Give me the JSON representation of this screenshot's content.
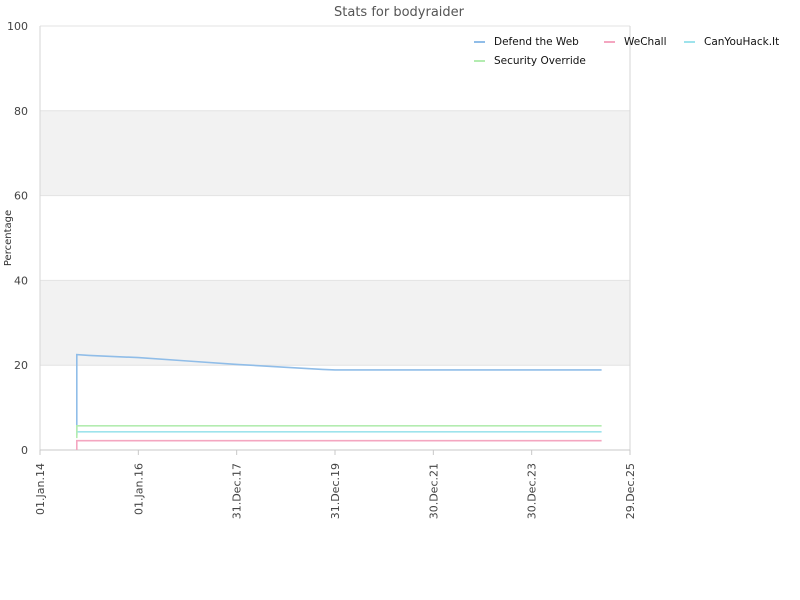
{
  "chart_data": {
    "type": "line",
    "title": "Stats for bodyraider",
    "xlabel": "",
    "ylabel": "Percentage",
    "ylim": [
      0,
      100
    ],
    "yticks": [
      "0",
      "20",
      "40",
      "60",
      "80",
      "100"
    ],
    "xlim": [
      "2014-01-01",
      "2025-12-29"
    ],
    "xticks": [
      {
        "date": "2014-01-01",
        "label": "01.Jan.14"
      },
      {
        "date": "2016-01-01",
        "label": "01.Jan.16"
      },
      {
        "date": "2017-12-31",
        "label": "31.Dec.17"
      },
      {
        "date": "2019-12-31",
        "label": "31.Dec.19"
      },
      {
        "date": "2021-12-30",
        "label": "30.Dec.21"
      },
      {
        "date": "2023-12-30",
        "label": "30.Dec.23"
      },
      {
        "date": "2025-12-29",
        "label": "29.Dec.25"
      }
    ],
    "grid": true,
    "bands": "alternating gray bands between 20-40 and 60-80",
    "legend_position": "top-right",
    "series": [
      {
        "name": "Defend the Web",
        "color": "#90bde8",
        "points": [
          [
            "2014-10-01",
            3.5
          ],
          [
            "2014-10-01",
            22.5
          ],
          [
            "2015-01-01",
            22.3
          ],
          [
            "2016-01-01",
            21.8
          ],
          [
            "2017-01-01",
            21.0
          ],
          [
            "2018-01-01",
            20.2
          ],
          [
            "2019-01-01",
            19.5
          ],
          [
            "2019-10-01",
            19.0
          ],
          [
            "2020-01-01",
            18.9
          ],
          [
            "2025-06-01",
            18.9
          ]
        ]
      },
      {
        "name": "WeChall",
        "color": "#f4a6c0",
        "points": [
          [
            "2014-10-01",
            0
          ],
          [
            "2014-10-01",
            2.2
          ],
          [
            "2025-06-01",
            2.2
          ]
        ]
      },
      {
        "name": "CanYouHack.It",
        "color": "#9ee3ec",
        "points": [
          [
            "2014-10-01",
            4.3
          ],
          [
            "2025-06-01",
            4.3
          ]
        ]
      },
      {
        "name": "Security Override",
        "color": "#b3ecb0",
        "points": [
          [
            "2014-10-01",
            2.8
          ],
          [
            "2014-10-01",
            5.7
          ],
          [
            "2025-06-01",
            5.7
          ]
        ]
      }
    ]
  }
}
